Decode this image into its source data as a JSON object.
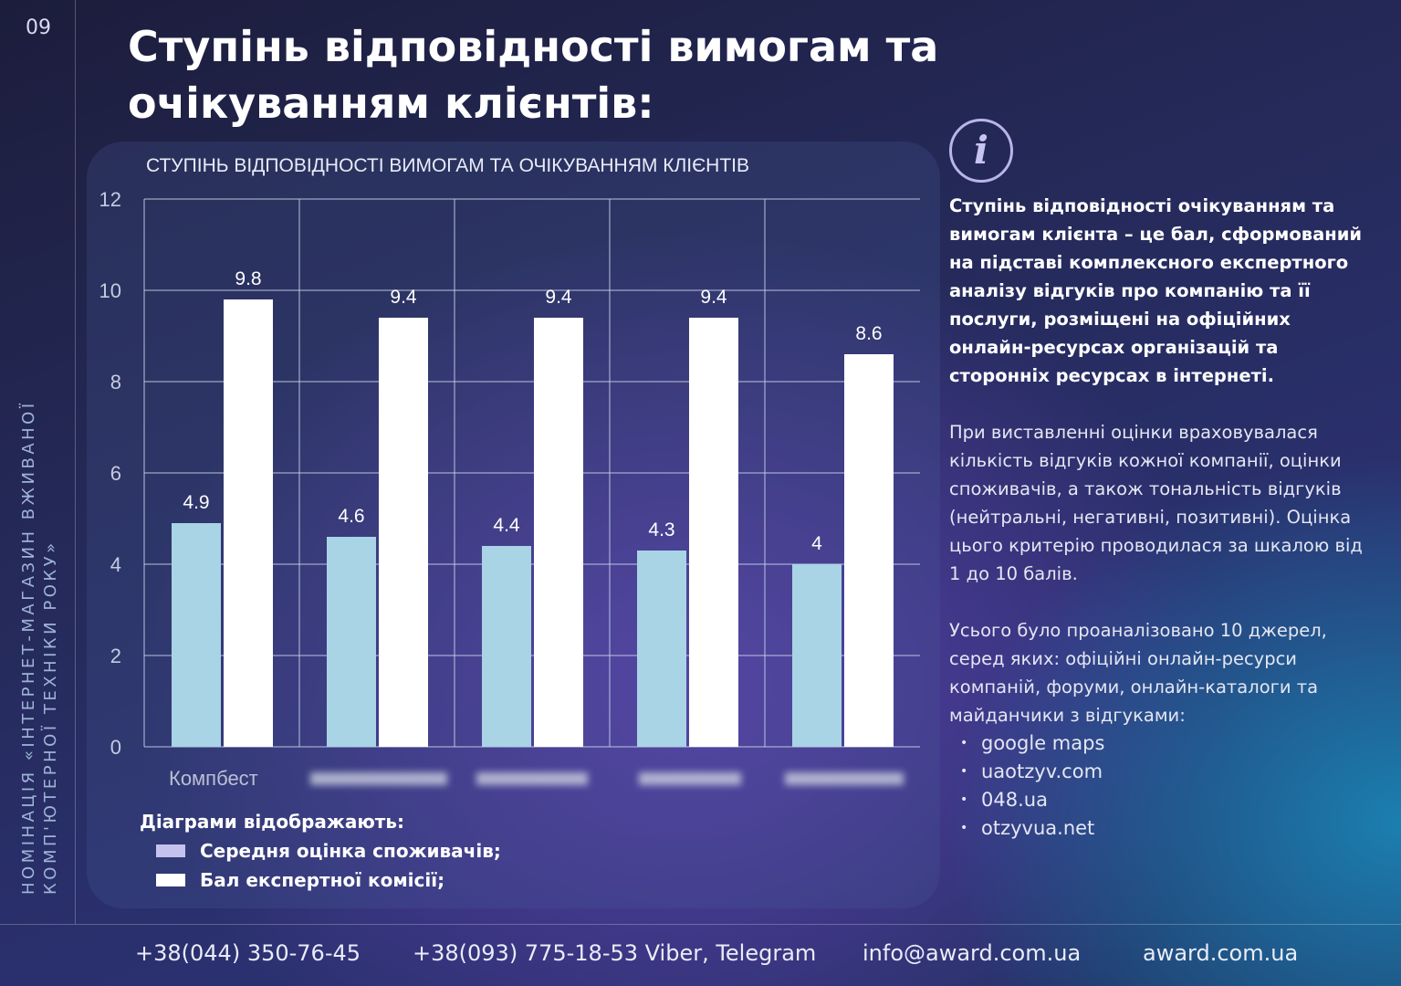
{
  "page_number": "09",
  "sidebar_text": [
    "НОМІНАЦІЯ «ІНТЕРНЕТ-МАГАЗИН ВЖИВАНОЇ",
    "КОМП'ЮТЕРНОЇ ТЕХНІКИ РОКУ»"
  ],
  "title": "Ступінь відповідності вимогам та очікуванням клієнтів:",
  "chart_data": {
    "type": "bar",
    "title": "СТУПІНЬ ВІДПОВІДНОСТІ ВИМОГАМ ТА ОЧІКУВАННЯМ КЛІЄНТІВ",
    "categories": [
      "Компбест",
      "",
      "",
      "",
      ""
    ],
    "series": [
      {
        "name": "Середня оцінка споживачів;",
        "color": "#a8d4e6",
        "values": [
          4.9,
          4.6,
          4.4,
          4.3,
          4
        ]
      },
      {
        "name": "Бал експертної комісії;",
        "color": "#ffffff",
        "values": [
          9.8,
          9.4,
          9.4,
          9.4,
          8.6
        ]
      }
    ],
    "ylim": [
      0,
      12
    ],
    "yticks": [
      "0",
      "2",
      "4",
      "6",
      "8",
      "10",
      "12"
    ],
    "grid": true,
    "legend_title": "Діаграми відображають:",
    "legend_placement": "bottom-left",
    "legend_swatch_colors": [
      "#c5c3ee",
      "#ffffff"
    ]
  },
  "info": {
    "icon": "info-icon",
    "bold": "Ступінь відповідності очікуванням та вимогам клієнта – це бал, сформований на підставі комплексного експертного аналізу відгуків про компанію та її послуги, розміщені на офіційних онлайн-ресурсах організацій та сторонніх ресурсах в інтернеті.",
    "p1": "При виставленні оцінки враховувалася кількість відгуків кожної компанії, оцінки споживачів, а також тональність відгуків (нейтральні, негативні, позитивні). Оцінка цього критерію проводилася за шкалою від 1 до 10 балів.",
    "p2": "Усього було проаналізовано 10 джерел, серед яких: офіційні онлайн-ресурси компаній, форуми, онлайн-каталоги та майданчики з відгуками:",
    "sources": [
      "google maps",
      "uaotzyv.com",
      "048.ua",
      "otzyvua.net"
    ]
  },
  "footer": {
    "phone1": "+38(044) 350-76-45",
    "phone2": "+38(093) 775-18-53 Viber, Telegram",
    "email": "info@award.com.ua",
    "site": "award.com.ua"
  }
}
